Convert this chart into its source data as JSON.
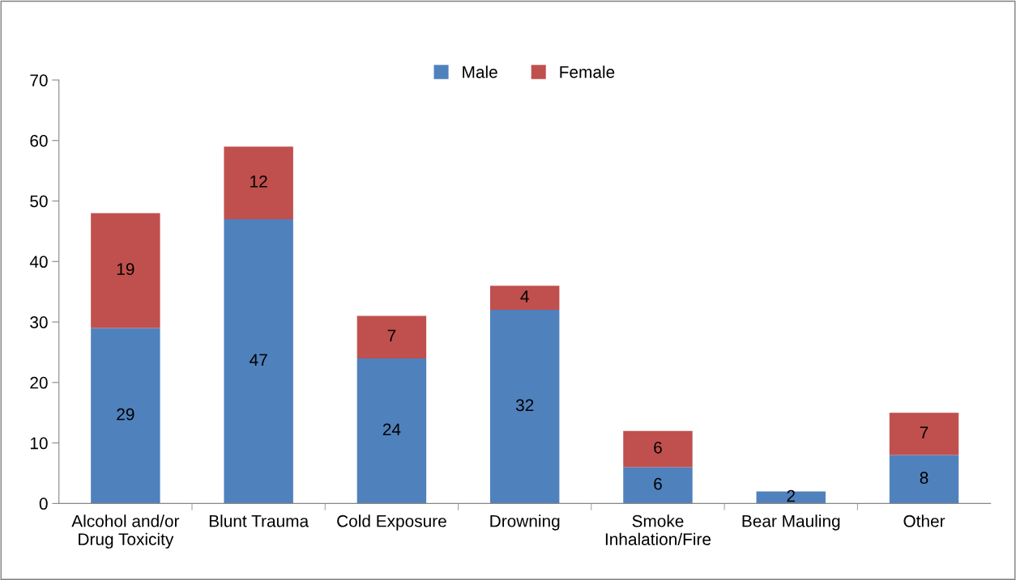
{
  "chart_data": {
    "type": "bar",
    "stacked": true,
    "categories": [
      "Alcohol and/or\nDrug Toxicity",
      "Blunt Trauma",
      "Cold Exposure",
      "Drowning",
      "Smoke\nInhalation/Fire",
      "Bear Mauling",
      "Other"
    ],
    "series": [
      {
        "name": "Male",
        "color": "#4f81bd",
        "values": [
          29,
          47,
          24,
          32,
          6,
          2,
          8
        ]
      },
      {
        "name": "Female",
        "color": "#c0504d",
        "values": [
          19,
          12,
          7,
          4,
          6,
          null,
          7
        ]
      }
    ],
    "ylim": [
      0,
      70
    ],
    "yticks": [
      0,
      10,
      20,
      30,
      40,
      50,
      60,
      70
    ],
    "data_labels": true,
    "legend": "top",
    "grid": false
  }
}
